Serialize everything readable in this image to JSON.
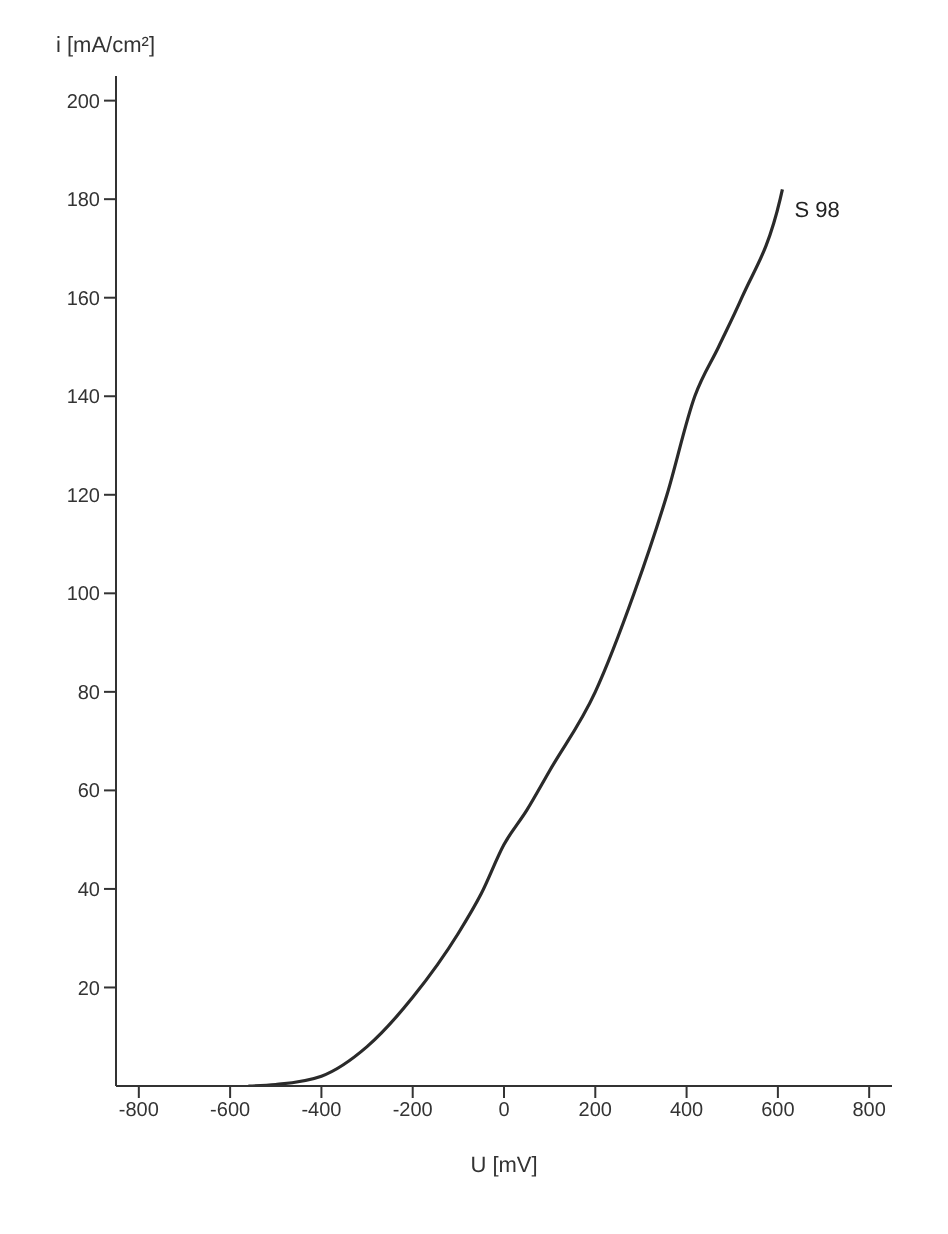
{
  "chart_data": {
    "type": "line",
    "xlabel": "U [mV]",
    "ylabel": "i [mA/cm²]",
    "x": [
      -560,
      -500,
      -400,
      -300,
      -200,
      -100,
      -50,
      0,
      50,
      100,
      200,
      285,
      357,
      418,
      470,
      521,
      605,
      610
    ],
    "series": [
      {
        "name": "S 98",
        "color": "#2a2a2a",
        "values": [
          0,
          0.3,
          2,
          8,
          18,
          31,
          39,
          49,
          56,
          64,
          80,
          100,
          120,
          140,
          150,
          160,
          180,
          182
        ]
      }
    ],
    "xlim": [
      -850,
      850
    ],
    "xticks": [
      -800,
      -600,
      -400,
      -200,
      0,
      200,
      400,
      600,
      800
    ],
    "ylim": [
      0,
      205
    ],
    "yticks": [
      20,
      40,
      60,
      80,
      100,
      120,
      140,
      160,
      180,
      200
    ],
    "grid": false,
    "legend": false,
    "marker": "none",
    "line_style": "solid"
  }
}
